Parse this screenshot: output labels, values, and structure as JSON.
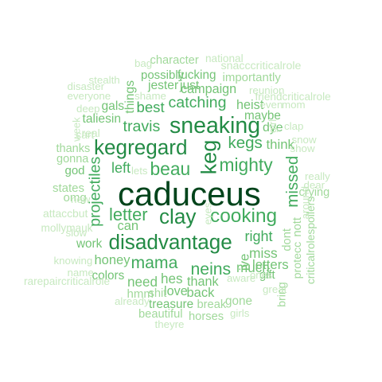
{
  "palette": {
    "darkest": "#00441b",
    "dark": "#1b7837",
    "medium": "#238b45",
    "mid": "#41ab5d",
    "light": "#74c476",
    "pale": "#a1d99b",
    "faint": "#c7e9c0"
  },
  "words": [
    {
      "text": "caduceus",
      "weight": 1.0,
      "tone": "darkest"
    },
    {
      "text": "sneaking",
      "weight": 0.62,
      "tone": "medium"
    },
    {
      "text": "keg",
      "weight": 0.58,
      "tone": "medium"
    },
    {
      "text": "kegregard",
      "weight": 0.55,
      "tone": "medium"
    },
    {
      "text": "clay",
      "weight": 0.55,
      "tone": "medium"
    },
    {
      "text": "disadvantage",
      "weight": 0.55,
      "tone": "medium"
    },
    {
      "text": "cooking",
      "weight": 0.5,
      "tone": "mid"
    },
    {
      "text": "beau",
      "weight": 0.45,
      "tone": "mid"
    },
    {
      "text": "mighty",
      "weight": 0.45,
      "tone": "mid"
    },
    {
      "text": "letter",
      "weight": 0.42,
      "tone": "mid"
    },
    {
      "text": "mama",
      "weight": 0.4,
      "tone": "mid"
    },
    {
      "text": "neins",
      "weight": 0.4,
      "tone": "mid"
    },
    {
      "text": "kegs",
      "weight": 0.38,
      "tone": "mid"
    },
    {
      "text": "missed",
      "weight": 0.38,
      "tone": "mid"
    },
    {
      "text": "travis",
      "weight": 0.35,
      "tone": "mid"
    },
    {
      "text": "catching",
      "weight": 0.35,
      "tone": "mid"
    },
    {
      "text": "projectiles",
      "weight": 0.35,
      "tone": "mid"
    },
    {
      "text": "best",
      "weight": 0.32,
      "tone": "mid"
    },
    {
      "text": "left",
      "weight": 0.3,
      "tone": "mid"
    },
    {
      "text": "right",
      "weight": 0.3,
      "tone": "mid"
    },
    {
      "text": "miss",
      "weight": 0.28,
      "tone": "light"
    },
    {
      "text": "much",
      "weight": 0.27,
      "tone": "light"
    },
    {
      "text": "need",
      "weight": 0.27,
      "tone": "light"
    },
    {
      "text": "hes",
      "weight": 0.27,
      "tone": "light"
    },
    {
      "text": "letters",
      "weight": 0.26,
      "tone": "light"
    },
    {
      "text": "ive",
      "weight": 0.26,
      "tone": "light"
    },
    {
      "text": "think",
      "weight": 0.26,
      "tone": "light"
    },
    {
      "text": "can",
      "weight": 0.25,
      "tone": "light"
    },
    {
      "text": "honey",
      "weight": 0.25,
      "tone": "light"
    },
    {
      "text": "back",
      "weight": 0.25,
      "tone": "light"
    },
    {
      "text": "love",
      "weight": 0.24,
      "tone": "light"
    },
    {
      "text": "thank",
      "weight": 0.24,
      "tone": "light"
    },
    {
      "text": "heist",
      "weight": 0.24,
      "tone": "light"
    },
    {
      "text": "campaign",
      "weight": 0.24,
      "tone": "light"
    },
    {
      "text": "dye",
      "weight": 0.23,
      "tone": "light"
    },
    {
      "text": "taliesin",
      "weight": 0.22,
      "tone": "light"
    },
    {
      "text": "jester",
      "weight": 0.22,
      "tone": "light"
    },
    {
      "text": "just",
      "weight": 0.22,
      "tone": "light"
    },
    {
      "text": "gals",
      "weight": 0.22,
      "tone": "light"
    },
    {
      "text": "things",
      "weight": 0.22,
      "tone": "light"
    },
    {
      "text": "colors",
      "weight": 0.21,
      "tone": "light"
    },
    {
      "text": "work",
      "weight": 0.21,
      "tone": "light"
    },
    {
      "text": "treasure",
      "weight": 0.21,
      "tone": "light"
    },
    {
      "text": "gone",
      "weight": 0.21,
      "tone": "pale"
    },
    {
      "text": "maybe",
      "weight": 0.21,
      "tone": "light"
    },
    {
      "text": "fucking",
      "weight": 0.21,
      "tone": "light"
    },
    {
      "text": "possibly",
      "weight": 0.2,
      "tone": "light"
    },
    {
      "text": "importantly",
      "weight": 0.2,
      "tone": "pale"
    },
    {
      "text": "god",
      "weight": 0.2,
      "tone": "light"
    },
    {
      "text": "states",
      "weight": 0.2,
      "tone": "pale"
    },
    {
      "text": "omg",
      "weight": 0.2,
      "tone": "pale"
    },
    {
      "text": "hmm",
      "weight": 0.2,
      "tone": "pale"
    },
    {
      "text": "shit",
      "weight": 0.19,
      "tone": "pale"
    },
    {
      "text": "gift",
      "weight": 0.19,
      "tone": "light"
    },
    {
      "text": "dont",
      "weight": 0.19,
      "tone": "pale"
    },
    {
      "text": "nott",
      "weight": 0.19,
      "tone": "pale"
    },
    {
      "text": "character",
      "weight": 0.19,
      "tone": "pale"
    },
    {
      "text": "beautiful",
      "weight": 0.19,
      "tone": "pale"
    },
    {
      "text": "horses",
      "weight": 0.19,
      "tone": "pale"
    },
    {
      "text": "break",
      "weight": 0.19,
      "tone": "pale"
    },
    {
      "text": "thanks",
      "weight": 0.18,
      "tone": "pale"
    },
    {
      "text": "gonna",
      "weight": 0.18,
      "tone": "pale"
    },
    {
      "text": "crying",
      "weight": 0.18,
      "tone": "pale"
    },
    {
      "text": "protecc",
      "weight": 0.17,
      "tone": "pale"
    },
    {
      "text": "bring",
      "weight": 0.17,
      "tone": "pale"
    },
    {
      "text": "snacccriticalrole",
      "weight": 0.17,
      "tone": "faint"
    },
    {
      "text": "attaccbut",
      "weight": 0.16,
      "tone": "faint"
    },
    {
      "text": "criticalrolespoilers",
      "weight": 0.16,
      "tone": "pale"
    },
    {
      "text": "mollymauk",
      "weight": 0.15,
      "tone": "faint"
    },
    {
      "text": "friendcriticalrole",
      "weight": 0.15,
      "tone": "faint"
    },
    {
      "text": "rarepaircriticalrole",
      "weight": 0.15,
      "tone": "faint"
    },
    {
      "text": "national",
      "weight": 0.15,
      "tone": "faint"
    },
    {
      "text": "reunion",
      "weight": 0.14,
      "tone": "faint"
    },
    {
      "text": "real",
      "weight": 0.16,
      "tone": "faint"
    },
    {
      "text": "cart",
      "weight": 0.15,
      "tone": "faint"
    },
    {
      "text": "bag",
      "weight": 0.14,
      "tone": "faint"
    },
    {
      "text": "stealth",
      "weight": 0.14,
      "tone": "faint"
    },
    {
      "text": "everyone",
      "weight": 0.14,
      "tone": "faint"
    },
    {
      "text": "disaster",
      "weight": 0.14,
      "tone": "faint"
    },
    {
      "text": "shame",
      "weight": 0.14,
      "tone": "faint"
    },
    {
      "text": "deep",
      "weight": 0.14,
      "tone": "faint"
    },
    {
      "text": "slow",
      "weight": 0.14,
      "tone": "faint"
    },
    {
      "text": "new",
      "weight": 0.14,
      "tone": "faint"
    },
    {
      "text": "knowing",
      "weight": 0.14,
      "tone": "faint"
    },
    {
      "text": "name",
      "weight": 0.14,
      "tone": "faint"
    },
    {
      "text": "already",
      "weight": 0.14,
      "tone": "faint"
    },
    {
      "text": "theyre",
      "weight": 0.14,
      "tone": "faint"
    },
    {
      "text": "girls",
      "weight": 0.14,
      "tone": "faint"
    },
    {
      "text": "aware",
      "weight": 0.14,
      "tone": "faint"
    },
    {
      "text": "great",
      "weight": 0.14,
      "tone": "faint"
    },
    {
      "text": "ones",
      "weight": 0.13,
      "tone": "faint"
    },
    {
      "text": "clap",
      "weight": 0.14,
      "tone": "faint"
    },
    {
      "text": "mom",
      "weight": 0.14,
      "tone": "faint"
    },
    {
      "text": "even",
      "weight": 0.14,
      "tone": "faint"
    },
    {
      "text": "snow",
      "weight": 0.14,
      "tone": "faint"
    },
    {
      "text": "show",
      "weight": 0.14,
      "tone": "faint"
    },
    {
      "text": "really",
      "weight": 0.14,
      "tone": "faint"
    },
    {
      "text": "dear",
      "weight": 0.14,
      "tone": "faint"
    },
    {
      "text": "around",
      "weight": 0.14,
      "tone": "faint"
    },
    {
      "text": "eyes",
      "weight": 0.13,
      "tone": "faint"
    },
    {
      "text": "lets",
      "weight": 0.13,
      "tone": "faint"
    },
    {
      "text": "week",
      "weight": 0.13,
      "tone": "faint"
    },
    {
      "text": "girl",
      "weight": 0.12,
      "tone": "faint"
    }
  ]
}
